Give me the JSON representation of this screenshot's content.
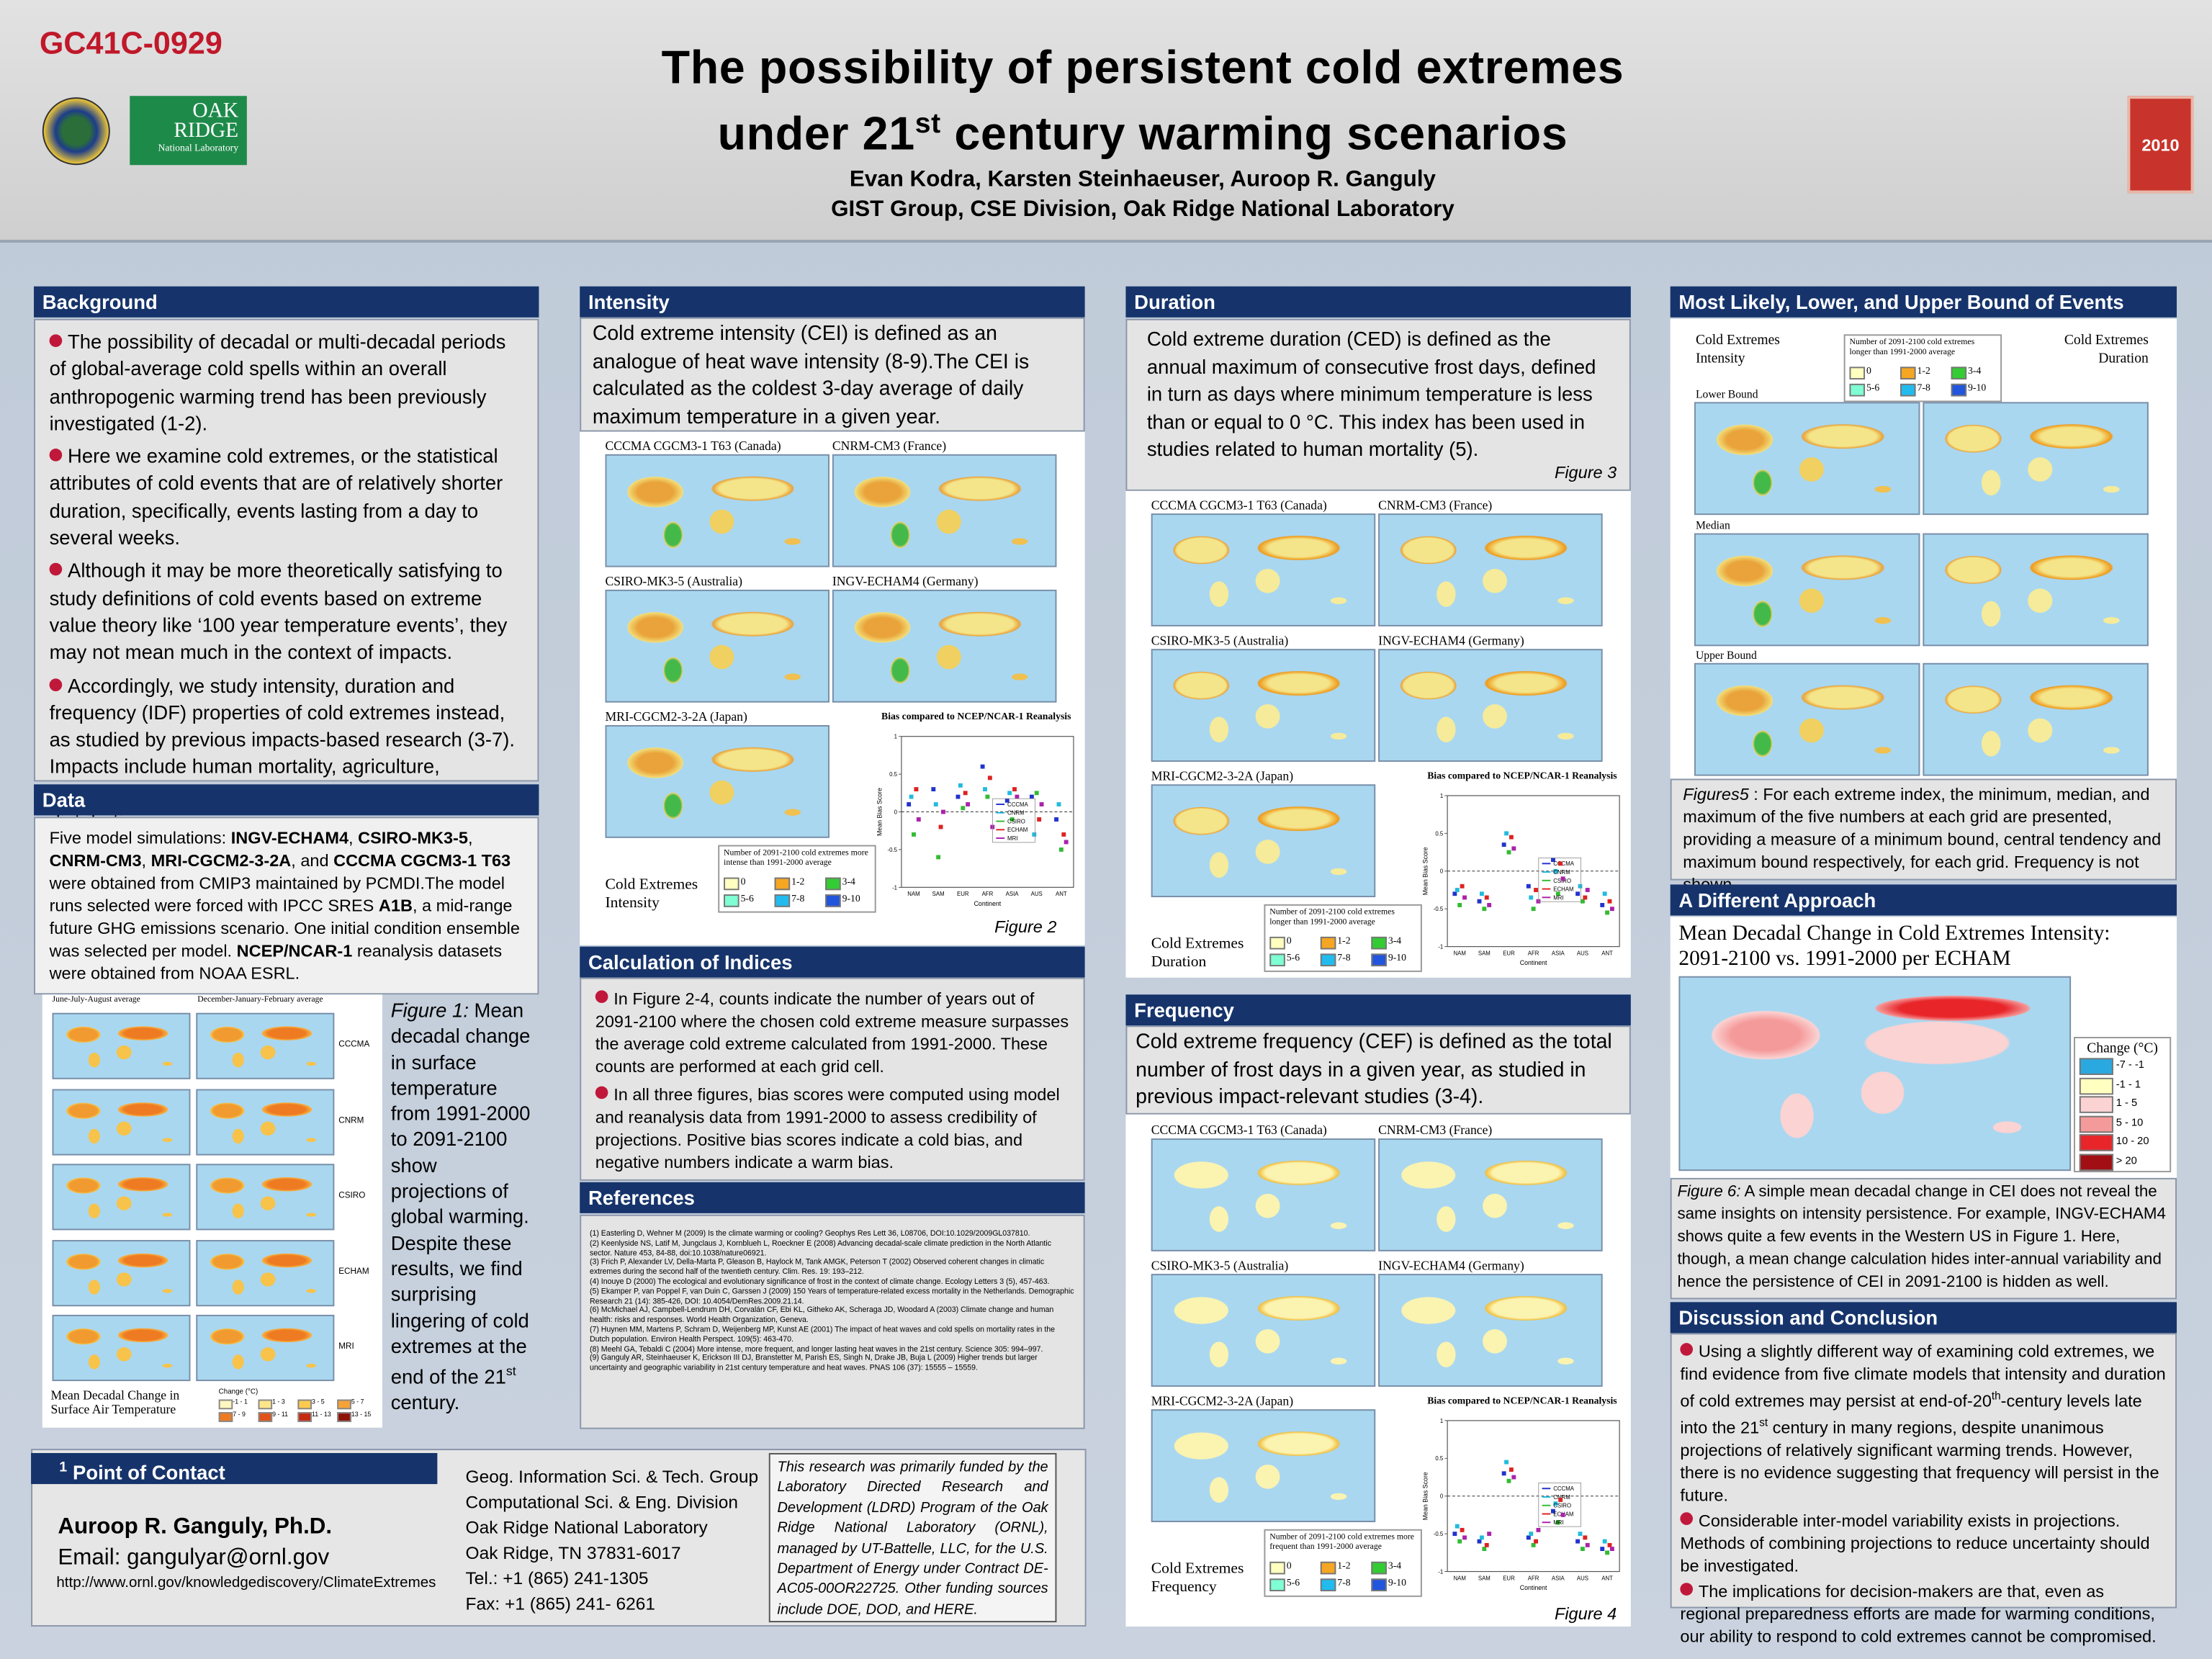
{
  "header": {
    "code": "GC41C-0929",
    "title_line1": "The possibility of persistent cold extremes",
    "title_line2_a": "under 21",
    "title_line2_sup": "st",
    "title_line2_b": " century warming scenarios",
    "authors": "Evan Kodra, Karsten Steinhaeuser, Auroop R. Ganguly",
    "affiliation": "GIST Group, CSE Division, Oak Ridge National Laboratory",
    "ornl_logo": [
      "Oak",
      "Ridge",
      "National Laboratory"
    ],
    "meeting_logo": "2010"
  },
  "background": {
    "heading": "Background",
    "bullets": [
      "The possibility of decadal or multi-decadal periods of global-average cold spells within an overall anthropogenic warming trend has been previously investigated (1-2).",
      "Here we examine cold extremes, or the statistical attributes of cold events that are of relatively shorter duration, specifically, events lasting from a day to several weeks.",
      "Although it may be more theoretically satisfying to study definitions of cold events based on extreme value theory like ‘100 year temperature events’, they may not mean much in the context of impacts.",
      "Accordingly, we study intensity, duration and frequency (IDF) properties of cold extremes instead, as studied by previous impacts-based research (3-7). Impacts include human mortality, agriculture, recreation, gardening, and plant reproduction and distribution."
    ]
  },
  "data_section": {
    "heading": "Data",
    "segments": [
      {
        "text": "Five model simulations: ",
        "style": "normal"
      },
      {
        "text": "INGV-ECHAM4",
        "style": "bold"
      },
      {
        "text": ", ",
        "style": "normal"
      },
      {
        "text": "CSIRO-MK3-5",
        "style": "bold"
      },
      {
        "text": ", ",
        "style": "normal"
      },
      {
        "text": "CNRM-CM3",
        "style": "bold"
      },
      {
        "text": ", ",
        "style": "normal"
      },
      {
        "text": "MRI-CGCM2-3-2A",
        "style": "bold"
      },
      {
        "text": ", and ",
        "style": "normal"
      },
      {
        "text": "CCCMA CGCM3-1 T63",
        "style": "bold"
      },
      {
        "text": " were obtained from CMIP3 maintained by PCMDI.The model runs selected were forced with IPCC SRES ",
        "style": "normal"
      },
      {
        "text": "A1B",
        "style": "bold"
      },
      {
        "text": ", a mid-range future GHG emissions scenario. One initial condition ensemble was selected per model. ",
        "style": "normal"
      },
      {
        "text": "NCEP/NCAR-1",
        "style": "bold"
      },
      {
        "text": " reanalysis datasets were obtained from NOAA ESRL.",
        "style": "normal"
      }
    ]
  },
  "figure1": {
    "column_titles": [
      "June-July-August average",
      "December-January-February average"
    ],
    "row_labels": [
      "CCCMA",
      "CNRM",
      "CSIRO",
      "ECHAM",
      "MRI"
    ],
    "map_title": [
      "Mean Decadal Change in",
      "Surface Air Temperature"
    ],
    "legend_title": "Change (°C)",
    "legend_items": [
      "-1 - 1",
      "1 - 3",
      "3 - 5",
      "5 - 7",
      "7 - 9",
      "9 - 11",
      "11 - 13",
      "13 - 15"
    ],
    "legend_colors": [
      "#fff7c0",
      "#fde68a",
      "#fbc94f",
      "#f7a238",
      "#ee7a22",
      "#e0521a",
      "#c52a12",
      "#8e1208"
    ],
    "caption": [
      {
        "text": "Figure 1:",
        "style": "italic"
      },
      {
        "text": " Mean decadal change in surface temperature from 1991-2000 to 2091-2100 show projections of global warming. Despite these results, we find surprising lingering of cold extremes at the end of the 21",
        "style": "normal"
      },
      {
        "text": "st",
        "style": "sup"
      },
      {
        "text": " century.",
        "style": "normal"
      }
    ]
  },
  "intensity": {
    "heading": "Intensity",
    "text": "Cold extreme intensity (CEI) is defined as an analogue of heat wave intensity (8-9).The CEI is calculated as the coldest 3-day average of daily maximum temperature in a given year.",
    "figure": {
      "map_titles": [
        "CCCMA CGCM3-1 T63 (Canada)",
        "CNRM-CM3 (France)",
        "CSIRO-MK3-5 (Australia)",
        "INGV-ECHAM4 (Germany)",
        "MRI-CGCM2-3-2A (Japan)"
      ],
      "side_label": [
        "Cold Extremes",
        "Intensity"
      ],
      "legend": {
        "title": "Number of 2091-2100 cold extremes more intense than 1991-2000 average",
        "items": [
          "0",
          "1-2",
          "3-4",
          "5-6",
          "7-8",
          "9-10"
        ],
        "colors": [
          "#ffffc0",
          "#f5a623",
          "#33cc33",
          "#7fffd4",
          "#22bbee",
          "#2255dd"
        ]
      },
      "label": "Figure 2",
      "bias": {
        "title": "Bias compared to NCEP/NCAR-1 Reanalysis",
        "ylabel": "Mean Bias Score",
        "xlabel": "Continent",
        "categories": [
          "NAM",
          "SAM",
          "EUR",
          "AFR",
          "ASIA",
          "AUS",
          "ANT"
        ],
        "ylim": [
          -1,
          1
        ],
        "yticks": [
          -1,
          -0.5,
          0,
          0.5,
          1
        ],
        "series": [
          {
            "name": "CCCMA",
            "color": "#2233cc",
            "values": [
              0.1,
              0.3,
              0.2,
              0.6,
              0.15,
              0.2,
              -0.1
            ]
          },
          {
            "name": "CNRM",
            "color": "#22bbdd",
            "values": [
              0.2,
              0.1,
              0.35,
              0.3,
              0.25,
              -0.3,
              0.1
            ]
          },
          {
            "name": "CSIRO",
            "color": "#33bb33",
            "values": [
              -0.3,
              -0.6,
              0.05,
              0.2,
              -0.1,
              0.25,
              -0.5
            ]
          },
          {
            "name": "ECHAM",
            "color": "#dd2222",
            "values": [
              0.3,
              -0.2,
              0.25,
              0.45,
              0.3,
              -0.1,
              -0.3
            ]
          },
          {
            "name": "MRI",
            "color": "#aa22aa",
            "values": [
              -0.1,
              0.0,
              0.1,
              -0.2,
              0.2,
              0.1,
              -0.4
            ]
          }
        ]
      }
    }
  },
  "calculation": {
    "heading": "Calculation of Indices",
    "bullets": [
      "In Figure 2-4, counts indicate the number of years out of 2091-2100 where the chosen cold extreme measure surpasses the average cold extreme calculated from 1991-2000. These counts are performed at each grid cell.",
      "In all three figures, bias scores were computed using model and reanalysis data from 1991-2000 to assess credibility of projections. Positive bias scores indicate a cold bias, and  negative numbers indicate a warm bias."
    ]
  },
  "references": {
    "heading": "References",
    "items": [
      "(1) Easterling D, Wehner M (2009) Is the climate warming or cooling? Geophys Res Lett 36, L08706, DOI:10.1029/2009GL037810.",
      "(2) Keenlyside NS, Latif M, Jungclaus J, Kornblueh L, Roeckner E (2008) Advancing decadal-scale climate prediction in the North Atlantic sector. Nature 453, 84-88, doi:10.1038/nature06921.",
      "(3) Frich P, Alexander LV, Della-Marta P, Gleason B, Haylock M, Tank AMGK, Peterson T (2002) Observed coherent changes in climatic extremes during the second half of the twentieth century. Clim. Res. 19: 193–212.",
      "(4) Inouye D (2000) The ecological and evolutionary significance of frost in the context of climate change. Ecology Letters 3 (5), 457-463.",
      "(5) Ekamper P, van Poppel F, van Duin C, Garssen J (2009) 150 Years of temperature-related excess mortality in the Netherlands. Demographic Research 21 (14): 385-426, DOI: 10.4054/DemRes.2009.21.14.",
      "(6) McMichael AJ, Campbell-Lendrum DH, Corvalán CF, Ebi KL, Githeko AK, Scheraga JD, Woodard A (2003) Climate change and human health: risks and responses. World Health Organization, Geneva.",
      "(7) Huynen MM, Martens P, Schram D, Weijenberg MP, Kunst AE (2001) The impact of heat waves and cold spells on mortality rates in the Dutch population. Environ Health Perspect. 109(5): 463-470.",
      "(8) Meehl GA, Tebaldi C (2004) More intense, more frequent, and longer lasting heat waves in the 21st century. Science 305: 994–997.",
      "(9) Ganguly AR, Steinhaeuser K, Erickson III DJ, Branstetter M, Parish ES, Singh N, Drake JB, Buja L (2009) Higher trends but larger uncertainty and geographic variability in 21st century temperature and heat waves. PNAS 106 (37): 15555 – 15559."
    ]
  },
  "duration": {
    "heading": "Duration",
    "text": "Cold extreme duration (CED) is defined as the annual maximum of consecutive frost days, defined in turn as days where minimum temperature is less than or equal to 0 °C. This index has been used in studies related to human mortality (5).",
    "figure": {
      "map_titles": [
        "CCCMA CGCM3-1 T63 (Canada)",
        "CNRM-CM3 (France)",
        "CSIRO-MK3-5 (Australia)",
        "INGV-ECHAM4 (Germany)",
        "MRI-CGCM2-3-2A (Japan)"
      ],
      "side_label": [
        "Cold Extremes",
        "Duration"
      ],
      "legend": {
        "title": "Number of 2091-2100 cold extremes longer than 1991-2000 average",
        "items": [
          "0",
          "1-2",
          "3-4",
          "5-6",
          "7-8",
          "9-10"
        ],
        "colors": [
          "#ffffc0",
          "#f5a623",
          "#33cc33",
          "#7fffd4",
          "#22bbee",
          "#2255dd"
        ]
      },
      "label": "Figure 3",
      "bias": {
        "title": "Bias compared to NCEP/NCAR-1 Reanalysis",
        "ylabel": "Mean Bias Score",
        "xlabel": "Continent",
        "categories": [
          "NAM",
          "SAM",
          "EUR",
          "AFR",
          "ASIA",
          "AUS",
          "ANT"
        ],
        "ylim": [
          -1,
          1
        ],
        "yticks": [
          -1,
          -0.5,
          0,
          0.5,
          1
        ],
        "series": [
          {
            "name": "CCCMA",
            "color": "#2233cc",
            "values": [
              -0.3,
              -0.4,
              0.35,
              -0.2,
              0.15,
              -0.3,
              -0.45
            ]
          },
          {
            "name": "CNRM",
            "color": "#22bbdd",
            "values": [
              -0.25,
              -0.3,
              0.5,
              -0.35,
              0.0,
              -0.2,
              -0.3
            ]
          },
          {
            "name": "CSIRO",
            "color": "#33bb33",
            "values": [
              -0.45,
              -0.5,
              0.25,
              -0.5,
              -0.3,
              -0.4,
              -0.55
            ]
          },
          {
            "name": "ECHAM",
            "color": "#dd2222",
            "values": [
              -0.2,
              -0.35,
              0.45,
              -0.25,
              0.1,
              -0.35,
              -0.4
            ]
          },
          {
            "name": "MRI",
            "color": "#aa22aa",
            "values": [
              -0.35,
              -0.45,
              0.3,
              -0.4,
              -0.1,
              -0.25,
              -0.5
            ]
          }
        ]
      }
    }
  },
  "frequency": {
    "heading": "Frequency",
    "text": "Cold extreme frequency (CEF) is defined as the total number of frost days in a given year, as studied in previous impact-relevant studies (3-4).",
    "figure": {
      "map_titles": [
        "CCCMA CGCM3-1 T63 (Canada)",
        "CNRM-CM3 (France)",
        "CSIRO-MK3-5 (Australia)",
        "INGV-ECHAM4 (Germany)",
        "MRI-CGCM2-3-2A (Japan)"
      ],
      "side_label": [
        "Cold Extremes",
        "Frequency"
      ],
      "legend": {
        "title": "Number of 2091-2100 cold extremes more frequent than 1991-2000 average",
        "items": [
          "0",
          "1-2",
          "3-4",
          "5-6",
          "7-8",
          "9-10"
        ],
        "colors": [
          "#ffffc0",
          "#f5a623",
          "#33cc33",
          "#7fffd4",
          "#22bbee",
          "#2255dd"
        ]
      },
      "label": "Figure 4",
      "bias": {
        "title": "Bias compared to NCEP/NCAR-1 Reanalysis",
        "ylabel": "Mean Bias Score",
        "xlabel": "Continent",
        "categories": [
          "NAM",
          "SAM",
          "EUR",
          "AFR",
          "ASIA",
          "AUS",
          "ANT"
        ],
        "ylim": [
          -1,
          1
        ],
        "yticks": [
          -1,
          -0.5,
          0,
          0.5,
          1
        ],
        "series": [
          {
            "name": "CCCMA",
            "color": "#2233cc",
            "values": [
              -0.5,
              -0.6,
              0.3,
              -0.55,
              -0.2,
              -0.6,
              -0.7
            ]
          },
          {
            "name": "CNRM",
            "color": "#22bbdd",
            "values": [
              -0.4,
              -0.55,
              0.45,
              -0.5,
              -0.1,
              -0.5,
              -0.6
            ]
          },
          {
            "name": "CSIRO",
            "color": "#33bb33",
            "values": [
              -0.6,
              -0.7,
              0.2,
              -0.65,
              -0.35,
              -0.7,
              -0.75
            ]
          },
          {
            "name": "ECHAM",
            "color": "#dd2222",
            "values": [
              -0.45,
              -0.65,
              0.35,
              -0.6,
              -0.05,
              -0.55,
              -0.65
            ]
          },
          {
            "name": "MRI",
            "color": "#aa22aa",
            "values": [
              -0.55,
              -0.5,
              0.25,
              -0.45,
              -0.25,
              -0.65,
              -0.7
            ]
          }
        ]
      }
    }
  },
  "most_likely": {
    "heading": "Most Likely,  Lower, and  Upper Bound of  Events",
    "left_label": [
      "Cold Extremes",
      "Intensity"
    ],
    "right_label": [
      "Cold Extremes",
      "Duration"
    ],
    "row_labels": [
      "Lower Bound",
      "Median",
      "Upper Bound"
    ],
    "legend": {
      "title": "Number of 2091-2100 cold extremes longer than 1991-2000 average",
      "items": [
        "0",
        "1-2",
        "3-4",
        "5-6",
        "7-8",
        "9-10"
      ],
      "colors": [
        "#ffffc0",
        "#f5a623",
        "#33cc33",
        "#7fffd4",
        "#22bbee",
        "#2255dd"
      ]
    },
    "caption": [
      {
        "text": "Figures5",
        "style": "italic"
      },
      {
        "text": " : For each extreme index, the minimum, median, and maximum of the five numbers at each grid are presented, providing a measure of a minimum bound, central tendency and maximum bound respectively, for each grid. Frequency is not shown.",
        "style": "normal"
      }
    ]
  },
  "different_approach": {
    "heading": "A Different Approach",
    "map_title": [
      "Mean Decadal Change in Cold Extremes Intensity:",
      "2091-2100 vs. 1991-2000 per ECHAM"
    ],
    "legend_title": "Change (°C)",
    "legend_items": [
      "-7 - -1",
      "-1 - 1",
      "1 - 5",
      "5 - 10",
      "10 - 20",
      "> 20"
    ],
    "legend_colors": [
      "#2aa8e0",
      "#ffffc0",
      "#fbd3d3",
      "#f59a9a",
      "#e8262a",
      "#a10f14"
    ],
    "caption": [
      {
        "text": "Figure 6:",
        "style": "italic"
      },
      {
        "text": " A simple mean decadal change in CEI does not reveal the same insights on intensity persistence. For example, INGV-ECHAM4 shows quite a few events in the Western US in  Figure 1. Here, though, a mean change calculation hides inter-annual variability and hence the persistence of CEI in 2091-2100 is hidden as well.",
        "style": "normal"
      }
    ]
  },
  "discussion": {
    "heading": "Discussion and Conclusion",
    "bullets": [
      [
        {
          "text": "Using a slightly different way of examining cold extremes, we find evidence from five climate models that intensity and duration of cold extremes may persist at end-of-20",
          "style": "normal"
        },
        {
          "text": "th",
          "style": "sup"
        },
        {
          "text": "-century  levels late into the 21",
          "style": "normal"
        },
        {
          "text": "st",
          "style": "sup"
        },
        {
          "text": " century in many regions, despite unanimous projections of relatively significant warming trends. However, there is no evidence suggesting that frequency will persist in the future.",
          "style": "normal"
        }
      ],
      "Considerable inter-model variability exists in projections. Methods of combining projections to reduce uncertainty should be investigated.",
      "The implications for decision-makers are that, even as regional preparedness efforts are made for warming conditions, our ability to respond to cold extremes cannot be compromised."
    ]
  },
  "contact": {
    "icon": "1",
    "heading": "Point of Contact",
    "name": "Auroop R. Ganguly, Ph.D.",
    "email": "Email: gangulyar@ornl.gov",
    "url": "http://www.ornl.gov/knowledgediscovery/ClimateExtremes",
    "address": [
      "Geog. Information Sci. & Tech. Group",
      "Computational Sci. & Eng. Division",
      "Oak Ridge National Laboratory",
      "Oak Ridge, TN 37831-6017",
      "Tel.: +1 (865) 241-1305",
      "Fax: +1 (865) 241- 6261"
    ],
    "funding": "This research was primarily funded by the Laboratory Directed Research and Development (LDRD) Program of the Oak Ridge National Laboratory (ORNL), managed by UT-Battelle, LLC, for the U.S. Department of Energy under Contract DE-AC05-00OR22725. Other funding sources include DOE, DOD, and HERE."
  }
}
